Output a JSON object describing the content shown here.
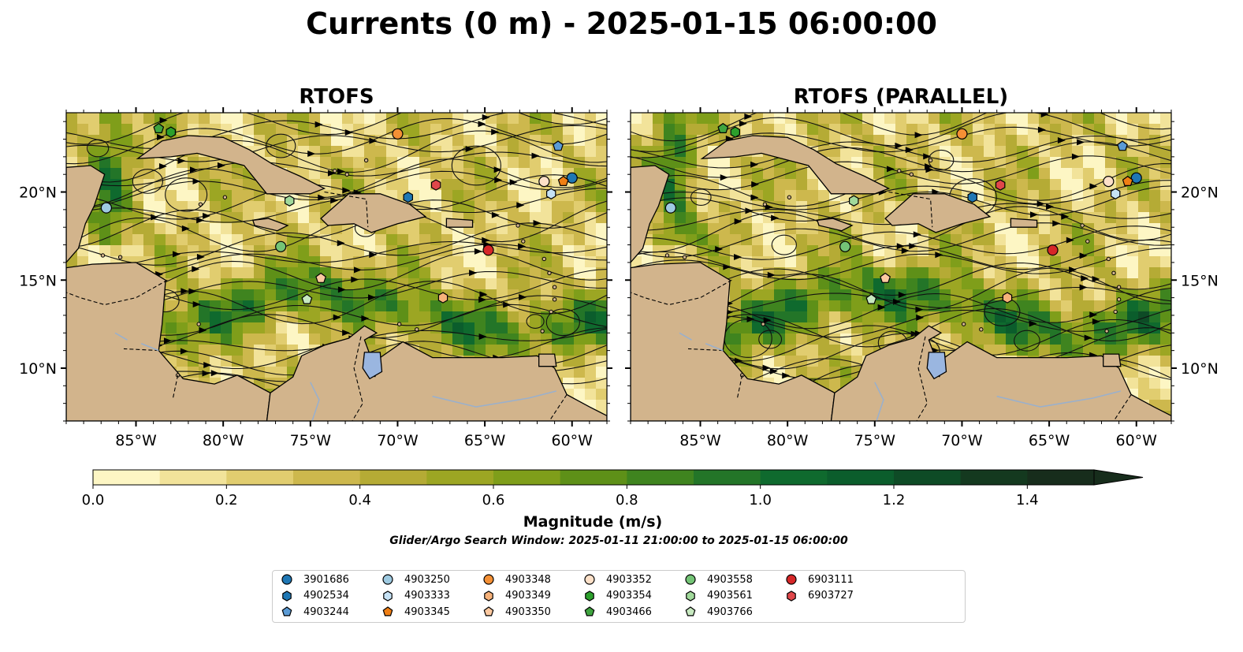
{
  "title": "Currents (0 m) - 2025-01-15 06:00:00",
  "panels": [
    {
      "id": "rtofs",
      "title": "RTOFS"
    },
    {
      "id": "rtofs-parallel",
      "title": "RTOFS (PARALLEL)"
    }
  ],
  "map_extent": {
    "lon_min": -89,
    "lon_max": -58,
    "lat_min": 7,
    "lat_max": 24.5
  },
  "lon_ticks": [
    {
      "lon": -85,
      "label": "85°W"
    },
    {
      "lon": -80,
      "label": "80°W"
    },
    {
      "lon": -75,
      "label": "75°W"
    },
    {
      "lon": -70,
      "label": "70°W"
    },
    {
      "lon": -65,
      "label": "65°W"
    },
    {
      "lon": -60,
      "label": "60°W"
    }
  ],
  "lat_ticks": [
    {
      "lat": 20,
      "label": "20°N"
    },
    {
      "lat": 15,
      "label": "15°N"
    },
    {
      "lat": 10,
      "label": "10°N"
    }
  ],
  "colors": {
    "land": "#d2b48c",
    "lake": "#9ab6e0",
    "ocean_low": "#fcf4c0",
    "colormap": [
      "#fdf6c4",
      "#f2e39a",
      "#e1cd6f",
      "#cdb84d",
      "#b5ab35",
      "#9ca623",
      "#7f9e1a",
      "#5e9018",
      "#3f841f",
      "#237528",
      "#0f6a2e",
      "#0b5d2c",
      "#0e4b26",
      "#14391f",
      "#172d1c"
    ]
  },
  "colorbar": {
    "label": "Magnitude (m/s)",
    "min": 0.0,
    "max": 1.5,
    "step": 0.1,
    "extend": "max",
    "ticks": [
      {
        "value": 0.0,
        "label": "0.0"
      },
      {
        "value": 0.2,
        "label": "0.2"
      },
      {
        "value": 0.4,
        "label": "0.4"
      },
      {
        "value": 0.6,
        "label": "0.6"
      },
      {
        "value": 0.8,
        "label": "0.8"
      },
      {
        "value": 1.0,
        "label": "1.0"
      },
      {
        "value": 1.2,
        "label": "1.2"
      },
      {
        "value": 1.4,
        "label": "1.4"
      }
    ]
  },
  "search_window": "Glider/Argo Search Window: 2025-01-11 21:00:00 to 2025-01-15 06:00:00",
  "floats": [
    {
      "id": "3901686",
      "label": "3901686",
      "color": "#1f77b4",
      "marker": "circle",
      "lon": -60.0,
      "lat": 20.8
    },
    {
      "id": "4902534",
      "label": "4902534",
      "color": "#1f77b4",
      "marker": "hexagon",
      "lon": -69.4,
      "lat": 19.7
    },
    {
      "id": "4903244",
      "label": "4903244",
      "color": "#5b9bd5",
      "marker": "pentagon",
      "lon": -60.8,
      "lat": 22.6
    },
    {
      "id": "4903250",
      "label": "4903250",
      "color": "#9ecae1",
      "marker": "circle",
      "lon": -86.7,
      "lat": 19.1
    },
    {
      "id": "4903333",
      "label": "4903333",
      "color": "#c6e2f5",
      "marker": "hexagon",
      "lon": -61.2,
      "lat": 19.9
    },
    {
      "id": "4903345",
      "label": "4903345",
      "color": "#f07f14",
      "marker": "pentagon",
      "lon": -60.5,
      "lat": 20.6
    },
    {
      "id": "4903348",
      "label": "4903348",
      "color": "#f49035",
      "marker": "circle",
      "lon": -70.0,
      "lat": 23.3
    },
    {
      "id": "4903349",
      "label": "4903349",
      "color": "#f7b27a",
      "marker": "hexagon",
      "lon": -67.4,
      "lat": 14.0
    },
    {
      "id": "4903350",
      "label": "4903350",
      "color": "#fcc9a0",
      "marker": "pentagon",
      "lon": -74.4,
      "lat": 15.1
    },
    {
      "id": "4903352",
      "label": "4903352",
      "color": "#fde0c8",
      "marker": "circle",
      "lon": -61.6,
      "lat": 20.6
    },
    {
      "id": "4903354",
      "label": "4903354",
      "color": "#2ca02c",
      "marker": "hexagon",
      "lon": -83.0,
      "lat": 23.4
    },
    {
      "id": "4903466",
      "label": "4903466",
      "color": "#3fa43f",
      "marker": "pentagon",
      "lon": -83.7,
      "lat": 23.6
    },
    {
      "id": "4903558",
      "label": "4903558",
      "color": "#74c476",
      "marker": "circle",
      "lon": -76.7,
      "lat": 16.9
    },
    {
      "id": "4903561",
      "label": "4903561",
      "color": "#a1d99b",
      "marker": "hexagon",
      "lon": -76.2,
      "lat": 19.5
    },
    {
      "id": "4903766",
      "label": "4903766",
      "color": "#c7e9c0",
      "marker": "pentagon",
      "lon": -75.2,
      "lat": 13.9
    },
    {
      "id": "6903111",
      "label": "6903111",
      "color": "#d62728",
      "marker": "circle",
      "lon": -64.8,
      "lat": 16.7
    },
    {
      "id": "6903727",
      "label": "6903727",
      "color": "#e0474a",
      "marker": "hexagon",
      "lon": -67.8,
      "lat": 20.4
    }
  ]
}
